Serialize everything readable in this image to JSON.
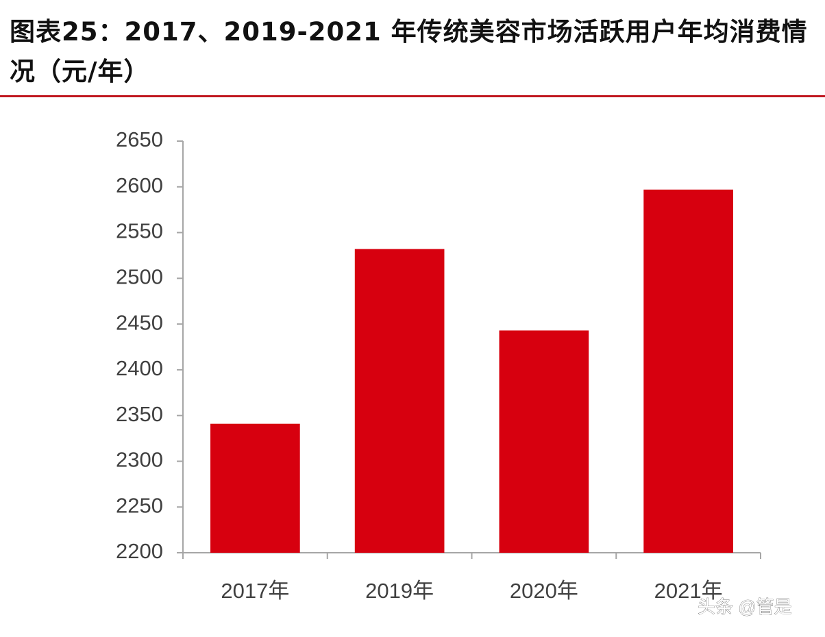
{
  "chart_data": {
    "type": "bar",
    "title": "图表25：2017、2019-2021 年传统美容市场活跃用户年均消费情况（元/年）",
    "categories": [
      "2017年",
      "2019年",
      "2020年",
      "2021年"
    ],
    "values": [
      2341,
      2532,
      2443,
      2597
    ],
    "color": "#d7000f",
    "ylim": [
      2200,
      2650
    ],
    "yticks": [
      2200,
      2250,
      2300,
      2350,
      2400,
      2450,
      2500,
      2550,
      2600,
      2650
    ],
    "grid": false,
    "watermark": "头条 @管是"
  }
}
